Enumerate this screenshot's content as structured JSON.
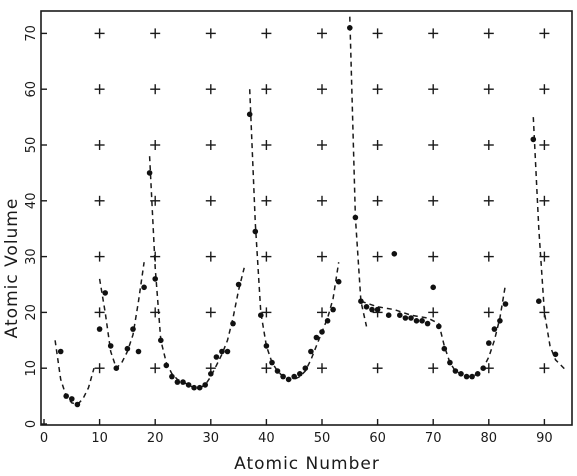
{
  "chart_data": {
    "type": "scatter",
    "title": "",
    "xlabel": "Atomic Number",
    "ylabel": "Atomic Volume",
    "xlim": [
      0,
      95
    ],
    "ylim": [
      0,
      75
    ],
    "x_ticks": [
      0,
      10,
      20,
      30,
      40,
      50,
      60,
      70,
      80,
      90
    ],
    "y_ticks": [
      0,
      10,
      20,
      30,
      40,
      50,
      60,
      70
    ],
    "grid": "plus markers at each 10-unit intersection",
    "legend": "none",
    "series": [
      {
        "type": "scatter",
        "marker": "filled circle",
        "points": [
          [
            3,
            13.0
          ],
          [
            4,
            5.0
          ],
          [
            5,
            4.5
          ],
          [
            6,
            3.5
          ],
          [
            10,
            17.0
          ],
          [
            11,
            23.5
          ],
          [
            12,
            14.0
          ],
          [
            13,
            10.0
          ],
          [
            15,
            13.5
          ],
          [
            16,
            17.0
          ],
          [
            17,
            13.0
          ],
          [
            18,
            24.5
          ],
          [
            19,
            45.0
          ],
          [
            20,
            26.0
          ],
          [
            21,
            15.0
          ],
          [
            22,
            10.5
          ],
          [
            23,
            8.5
          ],
          [
            24,
            7.5
          ],
          [
            25,
            7.5
          ],
          [
            26,
            7.0
          ],
          [
            27,
            6.5
          ],
          [
            28,
            6.5
          ],
          [
            29,
            7.0
          ],
          [
            30,
            9.0
          ],
          [
            31,
            12.0
          ],
          [
            32,
            13.0
          ],
          [
            33,
            13.0
          ],
          [
            34,
            18.0
          ],
          [
            35,
            25.0
          ],
          [
            37,
            55.5
          ],
          [
            38,
            34.5
          ],
          [
            39,
            19.5
          ],
          [
            40,
            14.0
          ],
          [
            41,
            11.0
          ],
          [
            42,
            9.5
          ],
          [
            43,
            8.5
          ],
          [
            44,
            8.0
          ],
          [
            45,
            8.5
          ],
          [
            46,
            9.0
          ],
          [
            47,
            10.0
          ],
          [
            48,
            13.0
          ],
          [
            49,
            15.5
          ],
          [
            50,
            16.5
          ],
          [
            51,
            18.5
          ],
          [
            52,
            20.5
          ],
          [
            53,
            25.5
          ],
          [
            55,
            71.0
          ],
          [
            56,
            37.0
          ],
          [
            57,
            22.0
          ],
          [
            58,
            21.0
          ],
          [
            59,
            20.5
          ],
          [
            60,
            20.5
          ],
          [
            62,
            19.5
          ],
          [
            63,
            30.5
          ],
          [
            64,
            19.5
          ],
          [
            65,
            19.0
          ],
          [
            66,
            19.0
          ],
          [
            67,
            18.5
          ],
          [
            68,
            18.5
          ],
          [
            69,
            18.0
          ],
          [
            70,
            24.5
          ],
          [
            71,
            17.5
          ],
          [
            72,
            13.5
          ],
          [
            73,
            11.0
          ],
          [
            74,
            9.5
          ],
          [
            75,
            9.0
          ],
          [
            76,
            8.5
          ],
          [
            77,
            8.5
          ],
          [
            78,
            9.0
          ],
          [
            79,
            10.0
          ],
          [
            80,
            14.5
          ],
          [
            81,
            17.0
          ],
          [
            82,
            18.5
          ],
          [
            83,
            21.5
          ],
          [
            88,
            51.0
          ],
          [
            89,
            22.0
          ],
          [
            92,
            12.5
          ]
        ]
      },
      {
        "type": "dashed-line",
        "segments": [
          [
            [
              2,
              15
            ],
            [
              3,
              8
            ],
            [
              4,
              5
            ],
            [
              5,
              3.8
            ],
            [
              6,
              3.5
            ],
            [
              7,
              4.5
            ],
            [
              8,
              6.5
            ],
            [
              9,
              10
            ]
          ],
          [
            [
              10,
              26
            ],
            [
              11,
              20
            ],
            [
              12,
              13
            ],
            [
              13,
              10
            ],
            [
              14,
              11
            ],
            [
              15,
              13
            ],
            [
              16,
              16
            ],
            [
              17,
              22
            ],
            [
              18,
              29
            ]
          ],
          [
            [
              19,
              48
            ],
            [
              20,
              28
            ],
            [
              21,
              15
            ],
            [
              22,
              11
            ],
            [
              23,
              9
            ],
            [
              24,
              8
            ],
            [
              25,
              7.5
            ],
            [
              26,
              7
            ],
            [
              27,
              6.5
            ],
            [
              28,
              6.5
            ],
            [
              29,
              7
            ],
            [
              30,
              8.5
            ],
            [
              31,
              10.5
            ],
            [
              32,
              12.5
            ],
            [
              33,
              15
            ],
            [
              34,
              19
            ],
            [
              35,
              24
            ],
            [
              36,
              28
            ]
          ],
          [
            [
              37,
              60
            ],
            [
              38,
              36
            ],
            [
              39,
              20
            ],
            [
              40,
              14
            ],
            [
              41,
              11
            ],
            [
              42,
              9.5
            ],
            [
              43,
              8.5
            ],
            [
              44,
              8
            ],
            [
              45,
              8
            ],
            [
              46,
              8.5
            ],
            [
              47,
              9.5
            ],
            [
              48,
              11.5
            ],
            [
              49,
              14
            ],
            [
              50,
              16.5
            ],
            [
              51,
              19
            ],
            [
              52,
              22.5
            ],
            [
              53,
              29
            ]
          ],
          [
            [
              55,
              73
            ],
            [
              56,
              37
            ],
            [
              57,
              22
            ],
            [
              58,
              17.5
            ]
          ],
          [
            [
              57,
              22
            ],
            [
              60,
              21
            ],
            [
              63,
              20.5
            ],
            [
              66,
              19.5
            ],
            [
              69,
              19
            ],
            [
              71,
              18
            ],
            [
              72,
              14
            ],
            [
              73,
              11
            ],
            [
              74,
              9.5
            ],
            [
              75,
              9
            ],
            [
              76,
              8.5
            ],
            [
              77,
              8.5
            ],
            [
              78,
              9
            ],
            [
              79,
              10
            ],
            [
              80,
              12
            ],
            [
              81,
              15
            ],
            [
              82,
              19
            ],
            [
              83,
              25
            ]
          ],
          [
            [
              88,
              55
            ],
            [
              89,
              35
            ],
            [
              90,
              20
            ],
            [
              91,
              14
            ],
            [
              92,
              11.5
            ],
            [
              93,
              10.5
            ],
            [
              94,
              9.5
            ]
          ]
        ]
      }
    ]
  }
}
